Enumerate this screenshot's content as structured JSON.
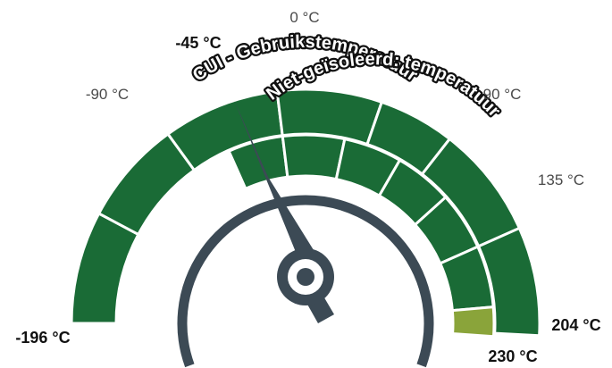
{
  "gauge": {
    "colors": {
      "outer_band": "#1a6b36",
      "inner_band": "#1a6b36",
      "inner_band_extension": "#8aa43a",
      "separator": "#ffffff",
      "needle_and_arc": "#3c4a55",
      "label_dark": "#111111",
      "label_light": "#4a4a4a"
    },
    "outer_band": {
      "label": "CUI - Gebruikstemperatuur",
      "min_label": "-196 °C",
      "max_label": "204 °C"
    },
    "inner_band": {
      "label": "Niet-geïsoleerd: temperatuur",
      "min_label": "-45 °C",
      "max_label": "230 °C"
    },
    "tick_labels": [
      "-90 °C",
      "0 °C",
      "90 °C",
      "135 °C"
    ],
    "needle_points_to": "-45 °C",
    "icons": {
      "needle": "needle-icon",
      "hub": "hub-icon"
    }
  }
}
